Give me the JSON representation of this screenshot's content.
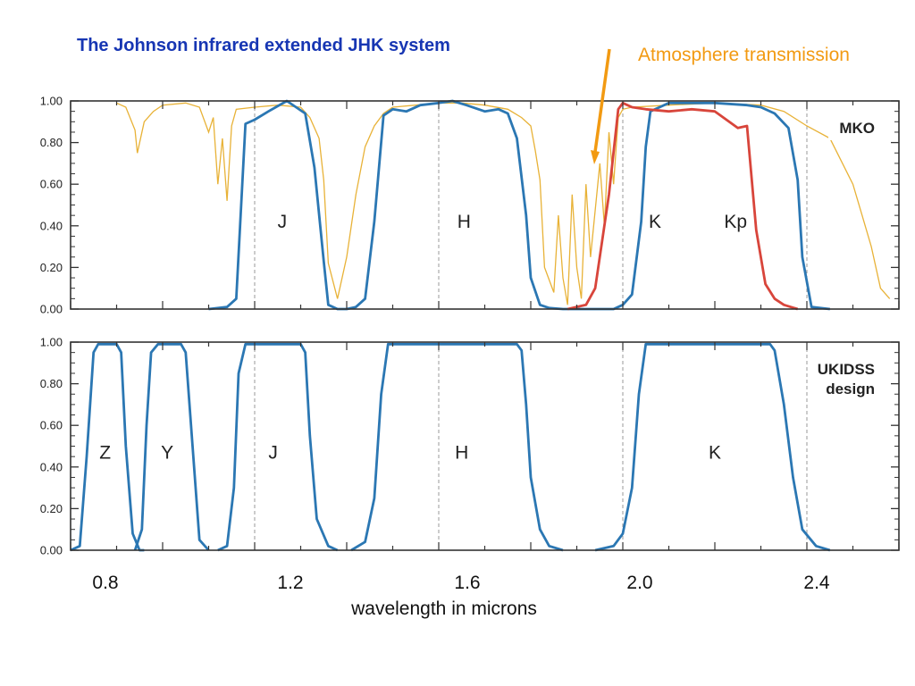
{
  "title": "The Johnson infrared extended JHK system",
  "annotation": "Atmosphere transmission",
  "colors": {
    "title": "#1736b3",
    "annotation": "#f29a12",
    "filter": "#2b77b3",
    "kp": "#d8453b",
    "atmosphere": "#e8b237"
  },
  "chart_data": [
    {
      "type": "line",
      "panel": "top",
      "side_label": [
        "MKO"
      ],
      "xlim": [
        0.8,
        2.6
      ],
      "ylim": [
        0,
        1
      ],
      "yticks": [
        "0.00",
        "0.20",
        "0.40",
        "0.60",
        "0.80",
        "1.00"
      ],
      "grid": "dashed vertical lines at 0.8, 1.2, 1.6, 2.0, 2.4",
      "band_labels": [
        {
          "text": "J",
          "x": 1.26,
          "y": 0.39,
          "color": "#222222"
        },
        {
          "text": "H",
          "x": 1.655,
          "y": 0.39,
          "color": "#222222"
        },
        {
          "text": "K",
          "x": 2.07,
          "y": 0.39,
          "color": "#222222"
        },
        {
          "text": "Kp",
          "x": 2.245,
          "y": 0.39,
          "color": "#d8453b"
        }
      ],
      "series": [
        {
          "color": "#2b77b3",
          "x": [
            1.1,
            1.14,
            1.16,
            1.18,
            1.2,
            1.23,
            1.27,
            1.29,
            1.31,
            1.33,
            1.35,
            1.36,
            1.38,
            1.4,
            1.42,
            1.44,
            1.46,
            1.48,
            1.5,
            1.53,
            1.56,
            1.6,
            1.63,
            1.66,
            1.7,
            1.73,
            1.75,
            1.77,
            1.79,
            1.8,
            1.82,
            1.84,
            1.87,
            1.9,
            1.95,
            1.98,
            2.0,
            2.02,
            2.04,
            2.05,
            2.06,
            2.08,
            2.1,
            2.14,
            2.2,
            2.27,
            2.3,
            2.33,
            2.36,
            2.38,
            2.39,
            2.41,
            2.45
          ],
          "y": [
            0,
            0.01,
            0.05,
            0.89,
            0.91,
            0.95,
            1.0,
            0.97,
            0.94,
            0.68,
            0.23,
            0.02,
            0,
            0,
            0.01,
            0.05,
            0.42,
            0.93,
            0.96,
            0.95,
            0.98,
            0.99,
            1.0,
            0.98,
            0.95,
            0.96,
            0.94,
            0.82,
            0.45,
            0.15,
            0.02,
            0.005,
            0,
            0,
            0,
            0,
            0.02,
            0.07,
            0.42,
            0.78,
            0.95,
            0.97,
            0.99,
            0.99,
            0.99,
            0.98,
            0.97,
            0.94,
            0.87,
            0.62,
            0.25,
            0.01,
            0
          ]
        },
        {
          "color": "#d8453b",
          "x": [
            1.88,
            1.92,
            1.94,
            1.97,
            1.99,
            2.0,
            2.02,
            2.05,
            2.1,
            2.15,
            2.2,
            2.25,
            2.27,
            2.29,
            2.31,
            2.33,
            2.35,
            2.38
          ],
          "y": [
            0,
            0.02,
            0.1,
            0.55,
            0.96,
            0.99,
            0.97,
            0.96,
            0.95,
            0.96,
            0.95,
            0.87,
            0.88,
            0.38,
            0.12,
            0.05,
            0.02,
            0
          ]
        }
      ],
      "atmosphere": {
        "color": "#e8b237",
        "x": [
          0.9,
          0.92,
          0.94,
          0.945,
          0.96,
          0.98,
          1.0,
          1.05,
          1.08,
          1.1,
          1.11,
          1.12,
          1.13,
          1.14,
          1.15,
          1.16,
          1.2,
          1.25,
          1.3,
          1.32,
          1.34,
          1.35,
          1.36,
          1.38,
          1.4,
          1.42,
          1.44,
          1.46,
          1.48,
          1.5,
          1.55,
          1.6,
          1.65,
          1.7,
          1.75,
          1.78,
          1.8,
          1.81,
          1.82,
          1.83,
          1.85,
          1.86,
          1.87,
          1.88,
          1.89,
          1.9,
          1.91,
          1.92,
          1.93,
          1.95,
          1.96,
          1.97,
          1.98,
          1.99,
          2.0,
          2.02,
          2.1,
          2.2,
          2.3,
          2.35,
          2.4,
          2.45,
          2.5,
          2.52,
          2.54,
          2.56,
          2.58
        ],
        "y": [
          0.99,
          0.97,
          0.86,
          0.75,
          0.9,
          0.95,
          0.98,
          0.99,
          0.97,
          0.85,
          0.92,
          0.6,
          0.82,
          0.52,
          0.88,
          0.96,
          0.97,
          0.98,
          0.97,
          0.92,
          0.82,
          0.62,
          0.22,
          0.05,
          0.25,
          0.55,
          0.78,
          0.88,
          0.94,
          0.97,
          0.98,
          0.99,
          0.99,
          0.98,
          0.96,
          0.92,
          0.88,
          0.76,
          0.62,
          0.2,
          0.08,
          0.45,
          0.15,
          0.02,
          0.55,
          0.2,
          0.05,
          0.6,
          0.25,
          0.7,
          0.4,
          0.85,
          0.6,
          0.92,
          0.96,
          0.97,
          0.98,
          0.99,
          0.98,
          0.95,
          0.88,
          0.82,
          0.6,
          0.45,
          0.3,
          0.1,
          0.05
        ]
      }
    },
    {
      "type": "line",
      "panel": "bottom",
      "side_label": [
        "UKIDSS",
        "design"
      ],
      "xlim": [
        0.8,
        2.6
      ],
      "ylim": [
        0,
        1
      ],
      "yticks": [
        "0.00",
        "0.20",
        "0.40",
        "0.60",
        "0.80",
        "1.00"
      ],
      "xticks": [
        "0.8",
        "1.2",
        "1.6",
        "2.0",
        "2.4"
      ],
      "xlabel": "wavelength in microns",
      "grid": "dashed vertical lines at 0.8, 1.2, 1.6, 2.0, 2.4",
      "band_labels": [
        {
          "text": "Z",
          "x": 0.875,
          "y": 0.44,
          "color": "#222222"
        },
        {
          "text": "Y",
          "x": 1.01,
          "y": 0.44,
          "color": "#222222"
        },
        {
          "text": "J",
          "x": 1.24,
          "y": 0.44,
          "color": "#222222"
        },
        {
          "text": "H",
          "x": 1.65,
          "y": 0.44,
          "color": "#222222"
        },
        {
          "text": "K",
          "x": 2.2,
          "y": 0.44,
          "color": "#222222"
        }
      ],
      "series": [
        {
          "color": "#2b77b3",
          "x": [
            0.8,
            0.82,
            0.835,
            0.85,
            0.86,
            0.9,
            0.91,
            0.92,
            0.935,
            0.95,
            0.96
          ],
          "y": [
            0,
            0.02,
            0.45,
            0.95,
            0.99,
            0.99,
            0.95,
            0.5,
            0.08,
            0,
            0
          ]
        },
        {
          "color": "#2b77b3",
          "x": [
            0.94,
            0.955,
            0.965,
            0.975,
            0.99,
            1.04,
            1.05,
            1.065,
            1.08,
            1.1
          ],
          "y": [
            0,
            0.1,
            0.6,
            0.95,
            0.99,
            0.99,
            0.95,
            0.5,
            0.05,
            0
          ]
        },
        {
          "color": "#2b77b3",
          "x": [
            1.12,
            1.14,
            1.155,
            1.165,
            1.18,
            1.3,
            1.31,
            1.32,
            1.335,
            1.36,
            1.38
          ],
          "y": [
            0,
            0.02,
            0.3,
            0.85,
            0.99,
            0.99,
            0.95,
            0.55,
            0.15,
            0.02,
            0
          ]
        },
        {
          "color": "#2b77b3",
          "x": [
            1.41,
            1.44,
            1.46,
            1.475,
            1.49,
            1.77,
            1.78,
            1.79,
            1.8,
            1.82,
            1.84,
            1.87
          ],
          "y": [
            0,
            0.04,
            0.25,
            0.75,
            0.99,
            0.99,
            0.96,
            0.7,
            0.35,
            0.1,
            0.02,
            0
          ]
        },
        {
          "color": "#2b77b3",
          "x": [
            1.94,
            1.98,
            2.0,
            2.02,
            2.035,
            2.05,
            2.32,
            2.33,
            2.35,
            2.37,
            2.39,
            2.42,
            2.45
          ],
          "y": [
            0,
            0.02,
            0.08,
            0.3,
            0.75,
            0.99,
            0.99,
            0.96,
            0.7,
            0.35,
            0.1,
            0.02,
            0
          ]
        }
      ]
    }
  ]
}
